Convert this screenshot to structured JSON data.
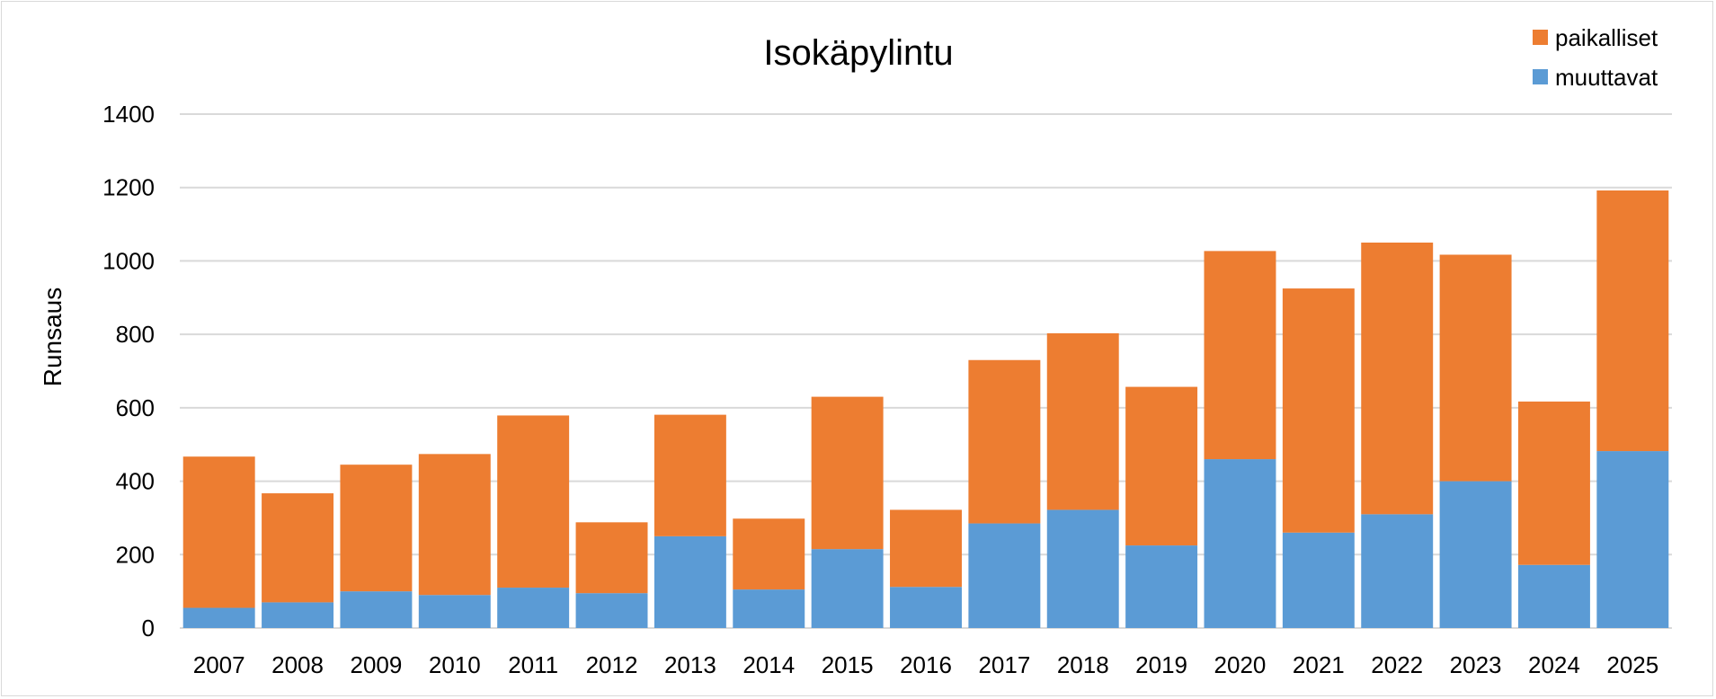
{
  "chart_data": {
    "type": "bar",
    "stacked": true,
    "title": "Isokäpylintu",
    "xlabel": "",
    "ylabel": "Runsaus",
    "ylim": [
      0,
      1400
    ],
    "yticks": [
      0,
      200,
      400,
      600,
      800,
      1000,
      1200,
      1400
    ],
    "grid": true,
    "legend_position": "top-right",
    "categories": [
      "2007",
      "2008",
      "2009",
      "2010",
      "2011",
      "2012",
      "2013",
      "2014",
      "2015",
      "2016",
      "2017",
      "2018",
      "2019",
      "2020",
      "2021",
      "2022",
      "2023",
      "2024",
      "2025"
    ],
    "series": [
      {
        "name": "muuttavat",
        "color": "#5b9bd5",
        "values": [
          55,
          70,
          100,
          90,
          110,
          95,
          250,
          105,
          215,
          112,
          285,
          322,
          225,
          460,
          260,
          310,
          400,
          172,
          482
        ]
      },
      {
        "name": "paikalliset",
        "color": "#ed7d31",
        "values": [
          412,
          297,
          345,
          384,
          469,
          193,
          331,
          193,
          415,
          210,
          445,
          481,
          432,
          567,
          665,
          740,
          617,
          445,
          710
        ]
      }
    ],
    "legend_order": [
      "paikalliset",
      "muuttavat"
    ]
  }
}
